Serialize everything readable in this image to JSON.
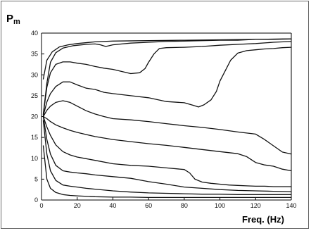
{
  "chart_data": {
    "type": "line",
    "ylabel_main": "P",
    "ylabel_sub": "m",
    "xlabel": "Freq. (Hz)",
    "xlim": [
      0,
      140
    ],
    "ylim": [
      0,
      40
    ],
    "x_ticks": [
      0,
      20,
      40,
      60,
      80,
      100,
      120,
      140
    ],
    "y_ticks": [
      0,
      5,
      10,
      15,
      20,
      25,
      30,
      35,
      40
    ],
    "grid": false,
    "legend": "none",
    "series": [
      {
        "x": [
          1,
          3,
          6,
          10,
          15,
          20,
          30,
          40,
          60,
          80,
          100,
          120,
          135,
          140
        ],
        "y": [
          29,
          33.5,
          35.5,
          36.7,
          37.2,
          37.5,
          37.9,
          38.1,
          38.2,
          38.3,
          38.4,
          38.5,
          38.6,
          38.6
        ]
      },
      {
        "x": [
          1,
          3,
          5,
          8,
          12,
          18,
          25,
          30,
          33,
          36,
          40,
          50,
          60,
          70,
          80,
          90,
          100,
          110,
          120,
          130,
          140
        ],
        "y": [
          20.5,
          28,
          33,
          35.3,
          36.4,
          37,
          37.3,
          37.4,
          37.2,
          36.8,
          37.2,
          37.6,
          37.8,
          38,
          38.1,
          38.2,
          38.3,
          38.3,
          38.5,
          38.5,
          38.6
        ]
      },
      {
        "x": [
          1,
          3,
          5,
          8,
          12,
          16,
          20,
          25,
          30,
          35,
          40,
          45,
          50,
          55,
          58,
          60,
          63,
          66,
          70,
          80,
          90,
          100,
          110,
          120,
          130,
          140
        ],
        "y": [
          20.5,
          27,
          30.5,
          32.5,
          33.1,
          33.1,
          32.8,
          32.5,
          32,
          31.6,
          31.3,
          30.8,
          30.3,
          30.5,
          31.5,
          33,
          35,
          36.3,
          36.5,
          36.6,
          36.8,
          37.1,
          37.3,
          37.5,
          37.8,
          38
        ]
      },
      {
        "x": [
          1,
          3,
          5,
          8,
          12,
          16,
          20,
          25,
          30,
          35,
          40,
          50,
          60,
          70,
          80,
          85,
          88,
          91,
          95,
          98,
          100,
          103,
          106,
          110,
          115,
          120,
          125,
          130,
          135,
          140
        ],
        "y": [
          20.2,
          23.5,
          25.5,
          27.2,
          28.3,
          28.3,
          27.6,
          26.8,
          26.5,
          25.8,
          25.5,
          25,
          24.5,
          23.6,
          23.3,
          22.7,
          22.3,
          22.8,
          24,
          26,
          28.5,
          31,
          33.5,
          35.2,
          35.8,
          36,
          36.2,
          36.3,
          36.5,
          36.6
        ]
      },
      {
        "x": [
          1,
          3,
          5,
          8,
          12,
          16,
          20,
          25,
          30,
          35,
          40,
          50,
          60,
          70,
          80,
          90,
          100,
          110,
          120,
          125,
          130,
          135,
          140
        ],
        "y": [
          20,
          21.5,
          22.5,
          23.4,
          23.8,
          23.4,
          22.5,
          21.4,
          20.6,
          20,
          19.5,
          19.2,
          18.8,
          18.3,
          17.8,
          17.4,
          16.9,
          16.3,
          15.8,
          14.5,
          13,
          11.5,
          11
        ]
      },
      {
        "x": [
          1,
          3,
          5,
          8,
          12,
          16,
          20,
          25,
          30,
          40,
          50,
          60,
          70,
          80,
          90,
          100,
          110,
          115,
          120,
          125,
          130,
          135,
          140
        ],
        "y": [
          20,
          19.5,
          18.8,
          18,
          17.3,
          16.7,
          16.2,
          15.7,
          15.2,
          14.5,
          14,
          13.5,
          13.1,
          12.6,
          12.1,
          11.6,
          11.1,
          10.4,
          9,
          8.4,
          8.1,
          7.4,
          7
        ]
      },
      {
        "x": [
          1,
          3,
          5,
          8,
          12,
          16,
          20,
          25,
          30,
          40,
          50,
          60,
          70,
          80,
          83,
          86,
          90,
          95,
          100,
          105,
          110,
          115,
          120,
          125,
          130,
          135,
          140
        ],
        "y": [
          20,
          17.5,
          15.5,
          13.2,
          11.6,
          10.8,
          10.3,
          9.9,
          9.5,
          8.7,
          8.3,
          8.1,
          7.7,
          7.3,
          6.5,
          5,
          4.3,
          4,
          3.8,
          3.6,
          3.5,
          3.4,
          3.3,
          3.3,
          3.2,
          3.2,
          3.2
        ]
      },
      {
        "x": [
          1,
          3,
          5,
          8,
          12,
          16,
          20,
          25,
          30,
          40,
          50,
          60,
          70,
          80,
          90,
          100,
          110,
          120,
          130,
          140
        ],
        "y": [
          20,
          14.5,
          11,
          8.3,
          7,
          6.7,
          6.5,
          6.3,
          6,
          5.6,
          5.2,
          4.4,
          3.8,
          3.1,
          2.8,
          2.5,
          2.3,
          2.2,
          2.1,
          2
        ]
      },
      {
        "x": [
          1,
          3,
          5,
          8,
          12,
          16,
          20,
          25,
          30,
          40,
          50,
          60,
          70,
          80,
          90,
          100,
          110,
          120,
          130,
          140
        ],
        "y": [
          19,
          11,
          7,
          4.7,
          3.6,
          3.3,
          3.1,
          2.8,
          2.6,
          2.2,
          1.9,
          1.7,
          1.6,
          1.5,
          1.4,
          1.4,
          1.3,
          1.3,
          1.3,
          1.3
        ]
      },
      {
        "x": [
          1,
          3,
          5,
          8,
          12,
          16,
          20,
          30,
          40,
          50,
          60,
          80,
          100,
          120,
          140
        ],
        "y": [
          13,
          5,
          2.8,
          1.8,
          1.3,
          1.1,
          1,
          0.8,
          0.7,
          0.7,
          0.6,
          0.6,
          0.6,
          0.6,
          0.6
        ]
      }
    ]
  }
}
